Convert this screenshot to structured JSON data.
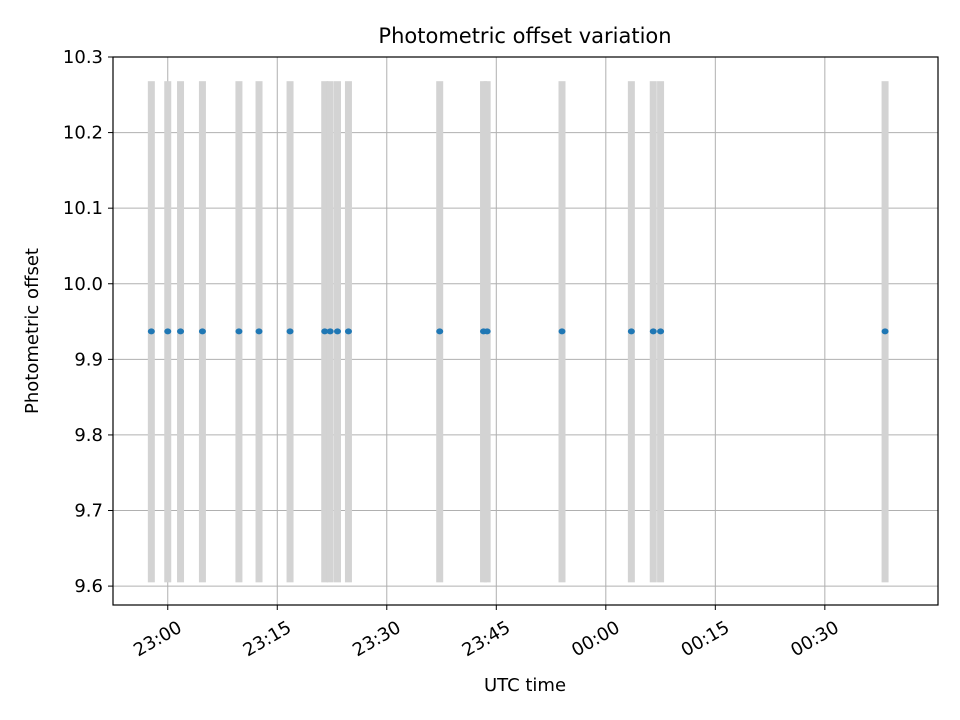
{
  "chart_data": {
    "type": "scatter",
    "title": "Photometric offset variation",
    "xlabel": "UTC time",
    "ylabel": "Photometric offset",
    "xlim": [
      "22:52:30",
      "00:45:30"
    ],
    "ylim": [
      9.575,
      10.3
    ],
    "grid": true,
    "x_ticks": [
      "23:00",
      "23:15",
      "23:30",
      "23:45",
      "00:00",
      "00:15",
      "00:30"
    ],
    "y_ticks": [
      "9.6",
      "9.7",
      "9.8",
      "9.9",
      "10.0",
      "10.1",
      "10.2",
      "10.3"
    ],
    "error_range": [
      9.605,
      10.268
    ],
    "series": [
      {
        "x": [
          "22:57:45",
          "23:00:00",
          "23:01:45",
          "23:04:45",
          "23:09:45",
          "23:12:30",
          "23:16:45",
          "23:21:30",
          "23:22:15",
          "23:23:15",
          "23:24:45",
          "23:37:15",
          "23:43:15",
          "23:43:45",
          "23:54:00",
          "00:03:30",
          "00:06:30",
          "00:07:30",
          "00:38:15"
        ],
        "y": [
          9.937,
          9.937,
          9.937,
          9.937,
          9.937,
          9.937,
          9.937,
          9.937,
          9.937,
          9.937,
          9.937,
          9.937,
          9.937,
          9.937,
          9.937,
          9.937,
          9.937,
          9.937,
          9.937
        ],
        "color": "#1f77b4",
        "errorbar_color": "#d3d3d3"
      }
    ]
  }
}
